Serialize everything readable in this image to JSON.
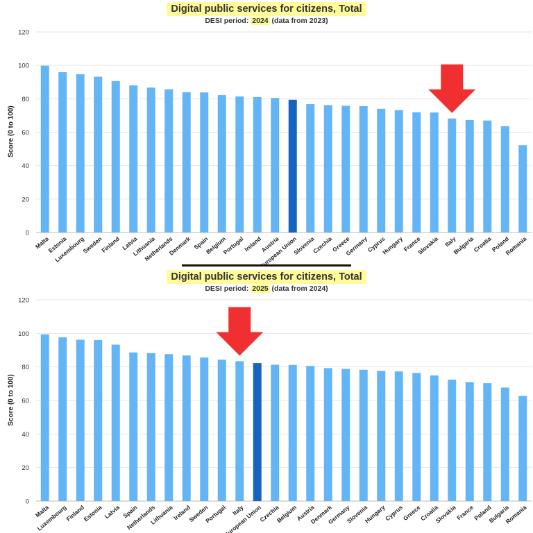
{
  "chart_data": [
    {
      "type": "bar",
      "title": "Digital public services for citizens, Total",
      "subtitle_prefix": "DESI period: ",
      "period": "2024",
      "subtitle_suffix": " (data from 2023)",
      "ylabel": "Score (0 to 100)",
      "xlabel": "",
      "ylim": [
        0,
        120
      ],
      "yticks": [
        0,
        20,
        40,
        60,
        80,
        100,
        120
      ],
      "grid": true,
      "categories": [
        "Malta",
        "Estonia",
        "Luxembourg",
        "Sweden",
        "Finland",
        "Latvia",
        "Lithuania",
        "Netherlands",
        "Denmark",
        "Spain",
        "Belgium",
        "Portugal",
        "Ireland",
        "Austria",
        "European Union",
        "Slovenia",
        "Czechia",
        "Greece",
        "Germany",
        "Cyprus",
        "Hungary",
        "France",
        "Slovakia",
        "Italy",
        "Bulgaria",
        "Croatia",
        "Poland",
        "Romania"
      ],
      "values": [
        99.8,
        95.9,
        94.7,
        93.2,
        90.6,
        88.0,
        86.7,
        85.7,
        83.9,
        83.8,
        82.2,
        81.4,
        81.0,
        80.5,
        79.4,
        76.8,
        76.2,
        75.8,
        75.6,
        74.0,
        73.2,
        71.9,
        71.8,
        68.2,
        67.3,
        67.0,
        63.6,
        52.2
      ],
      "highlight": "European Union",
      "annotation": "Italy",
      "colors": {
        "bar": "#64b5f6",
        "highlight": "#1565c0",
        "arrow": "#f03030"
      }
    },
    {
      "type": "bar",
      "title": "Digital public services for citizens, Total",
      "subtitle_prefix": "DESI period: ",
      "period": "2025",
      "subtitle_suffix": " (data from 2024)",
      "ylabel": "Score (0 to 100)",
      "xlabel": "",
      "ylim": [
        0,
        120
      ],
      "yticks": [
        0,
        20,
        40,
        60,
        80,
        100,
        120
      ],
      "grid": true,
      "categories": [
        "Malta",
        "Luxembourg",
        "Finland",
        "Estonia",
        "Latvia",
        "Spain",
        "Netherlands",
        "Lithuania",
        "Ireland",
        "Sweden",
        "Portugal",
        "Italy",
        "European Union",
        "Czechia",
        "Belgium",
        "Austria",
        "Denmark",
        "Germany",
        "Slovenia",
        "Hungary",
        "Cyprus",
        "Greece",
        "Croatia",
        "Slovakia",
        "France",
        "Poland",
        "Bulgaria",
        "Romania"
      ],
      "values": [
        99.4,
        97.6,
        96.2,
        96.0,
        93.3,
        88.6,
        88.2,
        87.6,
        86.8,
        85.6,
        84.3,
        83.4,
        82.3,
        81.3,
        81.2,
        80.6,
        79.3,
        78.8,
        78.3,
        77.6,
        77.3,
        76.4,
        74.9,
        72.4,
        70.9,
        70.3,
        67.7,
        62.7
      ],
      "highlight": "European Union",
      "annotation": "Italy",
      "colors": {
        "bar": "#64b5f6",
        "highlight": "#1565c0",
        "arrow": "#f03030"
      }
    }
  ]
}
